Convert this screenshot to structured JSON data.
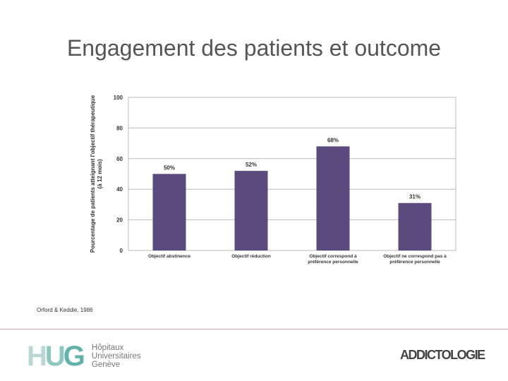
{
  "slide_title": "Engagement des patients et outcome",
  "citation": "Orford & Keddie, 1986",
  "logos": {
    "hug_letters": "HUG",
    "hug_line1": "Hôpitaux",
    "hug_line2": "Universitaires",
    "hug_line3": "Genève",
    "addictologie": "ADDICTOLOGIE"
  },
  "colors": {
    "bar": "#5b4a7d",
    "grid": "#bbbbbb",
    "footer_line": "#e0a3c4"
  },
  "chart_data": {
    "type": "bar",
    "title": "",
    "xlabel": "",
    "ylabel": "Pourcentage de patients atteignant l'objectif thérapeutique (à 12 mois)",
    "ylim": [
      0,
      100
    ],
    "yticks": [
      0,
      20,
      40,
      60,
      80,
      100
    ],
    "grid": true,
    "categories": [
      [
        "Objectif abstinence"
      ],
      [
        "Objectif réduction"
      ],
      [
        "Objectif correspond à",
        "préférence personnelle"
      ],
      [
        "Objectif ne correspond pas à",
        "préférence personnelle"
      ]
    ],
    "values": [
      50,
      52,
      68,
      31
    ],
    "value_labels": [
      "50%",
      "52%",
      "68%",
      "31%"
    ]
  }
}
